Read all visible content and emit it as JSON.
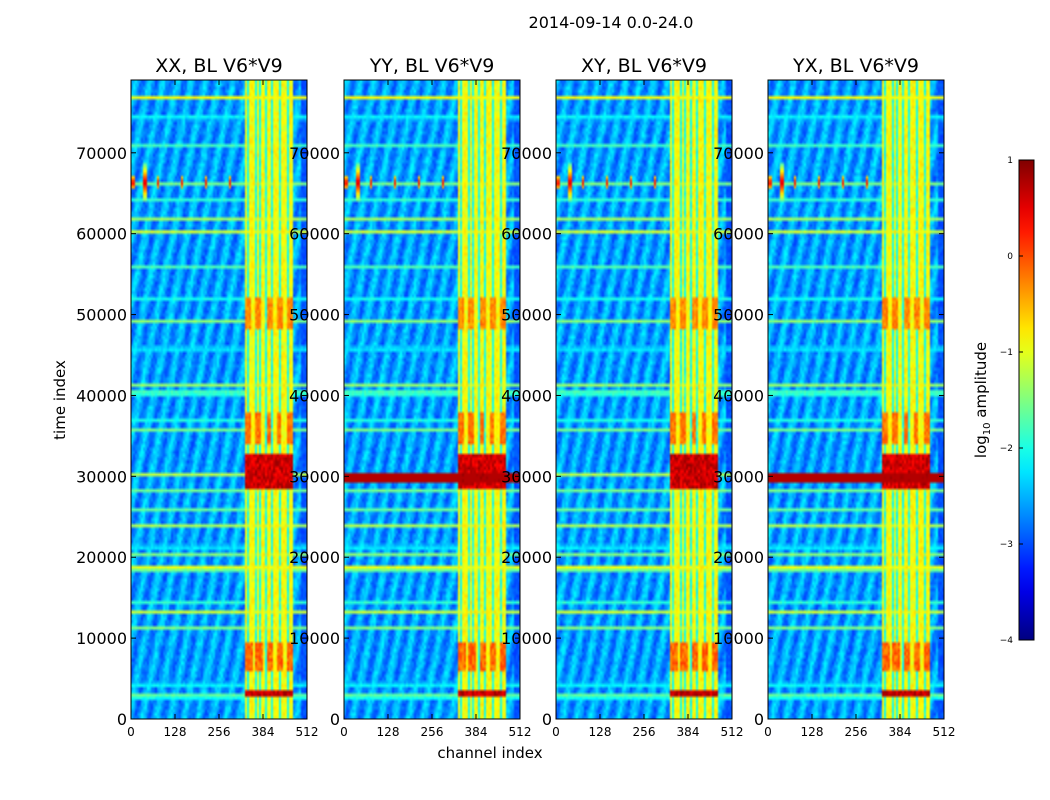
{
  "chart_data": {
    "type": "heatmap",
    "title": "2014-09-14 0.0-24.0",
    "xlabel": "channel index",
    "ylabel": "time index",
    "xlim": [
      0,
      512
    ],
    "ylim": [
      0,
      79000
    ],
    "x_ticks": [
      "0",
      "128",
      "256",
      "384",
      "512"
    ],
    "y_ticks": [
      "0",
      "10000",
      "20000",
      "30000",
      "40000",
      "50000",
      "60000",
      "70000"
    ],
    "panels": [
      {
        "title": "XX, BL V6*V9",
        "pol": "XX"
      },
      {
        "title": "YY, BL V6*V9",
        "pol": "YY"
      },
      {
        "title": "XY, BL V6*V9",
        "pol": "XY"
      },
      {
        "title": "YX, BL V6*V9",
        "pol": "YX"
      }
    ],
    "colorbar": {
      "label": "log",
      "label_sub": "10",
      "label_suffix": " amplitude",
      "range": [
        -4,
        1
      ],
      "ticks": [
        "1",
        "0",
        "−1",
        "−2",
        "−3",
        "−4"
      ],
      "colormap": "jet"
    },
    "features": {
      "rfi_channel_band": [
        330,
        470
      ],
      "strong_burst_time": [
        28500,
        33000
      ],
      "early_burst_time": [
        2800,
        3600
      ],
      "horizontal_rfi_times": [
        3000,
        4500,
        11500,
        13500,
        14500,
        18500,
        19000,
        20500,
        21500,
        24000,
        26000,
        28500,
        30500,
        36000,
        37000,
        40500,
        41500,
        46000,
        49500,
        52000,
        56000,
        60500,
        62000,
        64500,
        66500,
        71000,
        74500,
        77000
      ],
      "event_time": 66500
    }
  }
}
